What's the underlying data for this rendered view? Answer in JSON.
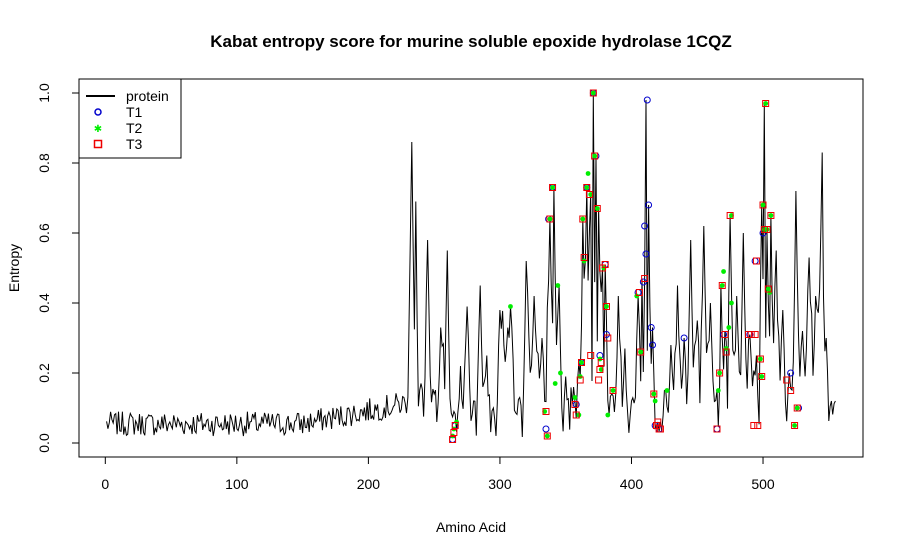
{
  "chart_data": {
    "type": "line",
    "title": "Kabat entropy score for  murine soluble epoxide hydrolase 1CQZ",
    "xlabel": "Amino Acid",
    "ylabel": "Entropy",
    "xlim": [
      -20,
      576
    ],
    "ylim": [
      -0.04,
      1.04
    ],
    "xticks": [
      0,
      100,
      200,
      300,
      400,
      500
    ],
    "yticks": [
      0.0,
      0.2,
      0.4,
      0.6,
      0.8,
      1.0
    ],
    "xtick_labels": [
      "0",
      "100",
      "200",
      "300",
      "400",
      "500"
    ],
    "ytick_labels": [
      "0.0",
      "0.2",
      "0.4",
      "0.6",
      "0.8",
      "1.0"
    ],
    "grid": false,
    "legend_position": "top-left",
    "colors": {
      "protein": "#000000",
      "T1": "#0000cc",
      "T2": "#00ee00",
      "T3": "#ee0000"
    },
    "legend": [
      {
        "name": "protein",
        "marker": "line"
      },
      {
        "name": "T1",
        "marker": "open-circle"
      },
      {
        "name": "T2",
        "marker": "filled-star"
      },
      {
        "name": "T3",
        "marker": "open-square"
      }
    ],
    "protein_profile": {
      "baseline_range": [
        1,
        230,
        0.02,
        0.09
      ],
      "peaks": [
        [
          233,
          0.86
        ],
        [
          236,
          0.69
        ],
        [
          240,
          0.17
        ],
        [
          245,
          0.58
        ],
        [
          250,
          0.14
        ],
        [
          255,
          0.33
        ],
        [
          260,
          0.55
        ],
        [
          265,
          0.09
        ],
        [
          270,
          0.22
        ],
        [
          275,
          0.39
        ],
        [
          280,
          0.12
        ],
        [
          285,
          0.45
        ],
        [
          290,
          0.25
        ],
        [
          295,
          0.1
        ],
        [
          300,
          0.38
        ],
        [
          308,
          0.39
        ],
        [
          315,
          0.13
        ],
        [
          320,
          0.52
        ],
        [
          326,
          0.42
        ],
        [
          332,
          0.3
        ],
        [
          338,
          0.64
        ],
        [
          341,
          0.73
        ],
        [
          345,
          0.45
        ],
        [
          350,
          0.19
        ],
        [
          356,
          0.16
        ],
        [
          360,
          0.23
        ],
        [
          363,
          0.64
        ],
        [
          366,
          0.73
        ],
        [
          369,
          0.71
        ],
        [
          371,
          1.0
        ],
        [
          373,
          0.82
        ],
        [
          375,
          0.67
        ],
        [
          378,
          0.5
        ],
        [
          380,
          0.51
        ],
        [
          385,
          0.14
        ],
        [
          390,
          0.42
        ],
        [
          395,
          0.27
        ],
        [
          400,
          0.12
        ],
        [
          405,
          0.42
        ],
        [
          408,
          0.47
        ],
        [
          411,
          0.98
        ],
        [
          413,
          0.68
        ],
        [
          416,
          0.33
        ],
        [
          420,
          0.06
        ],
        [
          425,
          0.15
        ],
        [
          430,
          0.28
        ],
        [
          435,
          0.45
        ],
        [
          440,
          0.3
        ],
        [
          445,
          0.58
        ],
        [
          450,
          0.35
        ],
        [
          455,
          0.62
        ],
        [
          460,
          0.4
        ],
        [
          465,
          0.15
        ],
        [
          468,
          0.45
        ],
        [
          471,
          0.32
        ],
        [
          475,
          0.65
        ],
        [
          480,
          0.42
        ],
        [
          485,
          0.6
        ],
        [
          490,
          0.31
        ],
        [
          495,
          0.25
        ],
        [
          499,
          0.68
        ],
        [
          501,
          0.97
        ],
        [
          503,
          0.6
        ],
        [
          506,
          0.65
        ],
        [
          510,
          0.55
        ],
        [
          515,
          0.38
        ],
        [
          520,
          0.2
        ],
        [
          525,
          0.72
        ],
        [
          530,
          0.32
        ],
        [
          535,
          0.53
        ],
        [
          540,
          0.42
        ],
        [
          545,
          0.83
        ],
        [
          548,
          0.3
        ],
        [
          552,
          0.12
        ],
        [
          555,
          0.12
        ]
      ]
    },
    "series": [
      {
        "name": "T1",
        "points": [
          [
            264,
            0.01
          ],
          [
            266,
            0.05
          ],
          [
            335,
            0.04
          ],
          [
            337,
            0.64
          ],
          [
            340,
            0.73
          ],
          [
            358,
            0.11
          ],
          [
            362,
            0.23
          ],
          [
            366,
            0.73
          ],
          [
            371,
            1.0
          ],
          [
            373,
            0.82
          ],
          [
            376,
            0.25
          ],
          [
            380,
            0.51
          ],
          [
            381,
            0.31
          ],
          [
            405,
            0.43
          ],
          [
            409,
            0.46
          ],
          [
            410,
            0.62
          ],
          [
            411,
            0.54
          ],
          [
            412,
            0.98
          ],
          [
            413,
            0.68
          ],
          [
            415,
            0.33
          ],
          [
            416,
            0.28
          ],
          [
            418,
            0.05
          ],
          [
            421,
            0.04
          ],
          [
            440,
            0.3
          ],
          [
            465,
            0.04
          ],
          [
            470,
            0.31
          ],
          [
            490,
            0.31
          ],
          [
            494,
            0.52
          ],
          [
            500,
            0.6
          ],
          [
            521,
            0.2
          ],
          [
            527,
            0.1
          ]
        ]
      },
      {
        "name": "T2",
        "points": [
          [
            264,
            0.02
          ],
          [
            265,
            0.04
          ],
          [
            267,
            0.06
          ],
          [
            308,
            0.39
          ],
          [
            334,
            0.09
          ],
          [
            336,
            0.02
          ],
          [
            338,
            0.64
          ],
          [
            340,
            0.73
          ],
          [
            342,
            0.17
          ],
          [
            344,
            0.45
          ],
          [
            346,
            0.2
          ],
          [
            357,
            0.13
          ],
          [
            360,
            0.08
          ],
          [
            361,
            0.19
          ],
          [
            362,
            0.23
          ],
          [
            363,
            0.64
          ],
          [
            364,
            0.52
          ],
          [
            366,
            0.73
          ],
          [
            367,
            0.77
          ],
          [
            369,
            0.71
          ],
          [
            371,
            1.0
          ],
          [
            372,
            0.82
          ],
          [
            374,
            0.67
          ],
          [
            376,
            0.24
          ],
          [
            377,
            0.21
          ],
          [
            379,
            0.5
          ],
          [
            381,
            0.39
          ],
          [
            382,
            0.08
          ],
          [
            386,
            0.15
          ],
          [
            404,
            0.42
          ],
          [
            407,
            0.26
          ],
          [
            417,
            0.14
          ],
          [
            418,
            0.12
          ],
          [
            427,
            0.15
          ],
          [
            466,
            0.15
          ],
          [
            467,
            0.2
          ],
          [
            469,
            0.45
          ],
          [
            470,
            0.49
          ],
          [
            472,
            0.27
          ],
          [
            474,
            0.33
          ],
          [
            476,
            0.4
          ],
          [
            476,
            0.65
          ],
          [
            498,
            0.24
          ],
          [
            499,
            0.19
          ],
          [
            500,
            0.68
          ],
          [
            501,
            0.61
          ],
          [
            502,
            0.97
          ],
          [
            503,
            0.61
          ],
          [
            504,
            0.44
          ],
          [
            505,
            0.43
          ],
          [
            506,
            0.65
          ],
          [
            524,
            0.05
          ],
          [
            526,
            0.1
          ]
        ]
      },
      {
        "name": "T3",
        "points": [
          [
            264,
            0.01
          ],
          [
            265,
            0.03
          ],
          [
            266,
            0.05
          ],
          [
            335,
            0.09
          ],
          [
            336,
            0.02
          ],
          [
            338,
            0.64
          ],
          [
            340,
            0.73
          ],
          [
            357,
            0.11
          ],
          [
            358,
            0.08
          ],
          [
            361,
            0.18
          ],
          [
            362,
            0.23
          ],
          [
            363,
            0.64
          ],
          [
            364,
            0.53
          ],
          [
            366,
            0.73
          ],
          [
            368,
            0.71
          ],
          [
            369,
            0.25
          ],
          [
            371,
            1.0
          ],
          [
            372,
            0.82
          ],
          [
            374,
            0.67
          ],
          [
            375,
            0.18
          ],
          [
            376,
            0.21
          ],
          [
            377,
            0.23
          ],
          [
            378,
            0.5
          ],
          [
            380,
            0.51
          ],
          [
            381,
            0.39
          ],
          [
            382,
            0.3
          ],
          [
            386,
            0.15
          ],
          [
            406,
            0.43
          ],
          [
            407,
            0.26
          ],
          [
            410,
            0.47
          ],
          [
            417,
            0.14
          ],
          [
            419,
            0.05
          ],
          [
            420,
            0.06
          ],
          [
            421,
            0.04
          ],
          [
            422,
            0.04
          ],
          [
            465,
            0.04
          ],
          [
            467,
            0.2
          ],
          [
            469,
            0.45
          ],
          [
            471,
            0.31
          ],
          [
            472,
            0.26
          ],
          [
            475,
            0.65
          ],
          [
            489,
            0.31
          ],
          [
            491,
            0.31
          ],
          [
            493,
            0.05
          ],
          [
            494,
            0.31
          ],
          [
            495,
            0.52
          ],
          [
            496,
            0.05
          ],
          [
            498,
            0.24
          ],
          [
            499,
            0.19
          ],
          [
            500,
            0.68
          ],
          [
            501,
            0.61
          ],
          [
            502,
            0.97
          ],
          [
            503,
            0.61
          ],
          [
            504,
            0.44
          ],
          [
            506,
            0.65
          ],
          [
            518,
            0.18
          ],
          [
            521,
            0.15
          ],
          [
            524,
            0.05
          ],
          [
            526,
            0.1
          ]
        ]
      }
    ]
  }
}
